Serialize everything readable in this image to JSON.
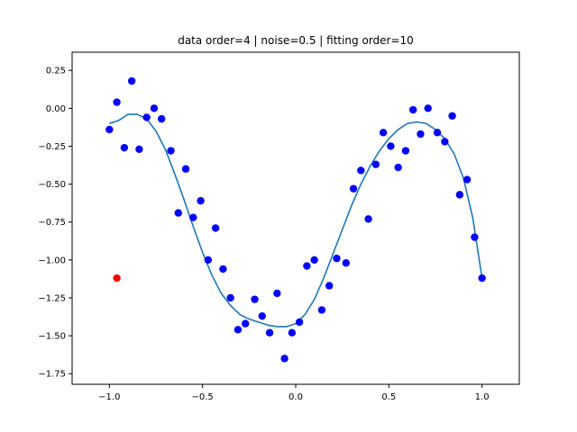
{
  "chart_data": {
    "type": "scatter",
    "title": "data order=4 | noise=0.5 | fitting order=10",
    "xlabel": "",
    "ylabel": "",
    "xlim": [
      -1.2,
      1.2
    ],
    "ylim": [
      -1.82,
      0.37
    ],
    "xticks": [
      -1.0,
      -0.5,
      0.0,
      0.5,
      1.0
    ],
    "xtick_labels": [
      "−1.0",
      "−0.5",
      "0.0",
      "0.5",
      "1.0"
    ],
    "yticks": [
      0.25,
      0.0,
      -0.25,
      -0.5,
      -0.75,
      -1.0,
      -1.25,
      -1.5,
      -1.75
    ],
    "ytick_labels": [
      "0.25",
      "0.00",
      "−0.25",
      "−0.50",
      "−0.75",
      "−1.00",
      "−1.25",
      "−1.50",
      "−1.75"
    ],
    "grid": false,
    "colors": {
      "points": "#0000ff",
      "highlight": "#ff0000",
      "fit": "#1f77b4"
    },
    "series": [
      {
        "kind": "points",
        "x": [
          -1.0,
          -0.96,
          -0.92,
          -0.88,
          -0.84,
          -0.8,
          -0.76,
          -0.72,
          -0.67,
          -0.63,
          -0.59,
          -0.55,
          -0.51,
          -0.47,
          -0.43,
          -0.39,
          -0.35,
          -0.31,
          -0.27,
          -0.22,
          -0.18,
          -0.14,
          -0.1,
          -0.06,
          -0.02,
          0.02,
          0.06,
          0.1,
          0.14,
          0.18,
          0.22,
          0.27,
          0.31,
          0.35,
          0.39,
          0.43,
          0.47,
          0.51,
          0.55,
          0.59,
          0.63,
          0.67,
          0.71,
          0.76,
          0.8,
          0.84,
          0.88,
          0.92,
          0.96,
          1.0
        ],
        "y": [
          -0.14,
          0.04,
          -0.26,
          0.18,
          -0.27,
          -0.06,
          0.0,
          -0.07,
          -0.28,
          -0.69,
          -0.4,
          -0.72,
          -0.61,
          -1.0,
          -0.79,
          -1.06,
          -1.25,
          -1.46,
          -1.42,
          -1.26,
          -1.37,
          -1.48,
          -1.22,
          -1.65,
          -1.48,
          -1.41,
          -1.04,
          -1.0,
          -1.33,
          -1.17,
          -0.99,
          -1.02,
          -0.53,
          -0.41,
          -0.73,
          -0.37,
          -0.16,
          -0.25,
          -0.39,
          -0.28,
          -0.01,
          -0.17,
          0.0,
          -0.16,
          -0.22,
          -0.05,
          -0.57,
          -0.47,
          -0.85,
          -1.12
        ]
      },
      {
        "kind": "highlight-point",
        "x": [
          -0.96
        ],
        "y": [
          -1.12
        ]
      },
      {
        "kind": "fit-curve",
        "x": [
          -1.0,
          -0.95,
          -0.9,
          -0.85,
          -0.8,
          -0.75,
          -0.7,
          -0.65,
          -0.6,
          -0.55,
          -0.5,
          -0.45,
          -0.4,
          -0.35,
          -0.3,
          -0.25,
          -0.2,
          -0.15,
          -0.1,
          -0.05,
          0.0,
          0.05,
          0.1,
          0.15,
          0.2,
          0.25,
          0.3,
          0.35,
          0.4,
          0.45,
          0.5,
          0.55,
          0.6,
          0.65,
          0.7,
          0.75,
          0.8,
          0.85,
          0.9,
          0.95,
          1.0
        ],
        "y": [
          -0.1,
          -0.08,
          -0.04,
          -0.04,
          -0.07,
          -0.15,
          -0.27,
          -0.43,
          -0.6,
          -0.78,
          -0.95,
          -1.1,
          -1.22,
          -1.3,
          -1.36,
          -1.39,
          -1.41,
          -1.43,
          -1.44,
          -1.44,
          -1.42,
          -1.36,
          -1.26,
          -1.12,
          -0.96,
          -0.8,
          -0.64,
          -0.5,
          -0.38,
          -0.28,
          -0.2,
          -0.14,
          -0.1,
          -0.09,
          -0.1,
          -0.14,
          -0.2,
          -0.3,
          -0.46,
          -0.72,
          -1.12
        ]
      }
    ]
  }
}
